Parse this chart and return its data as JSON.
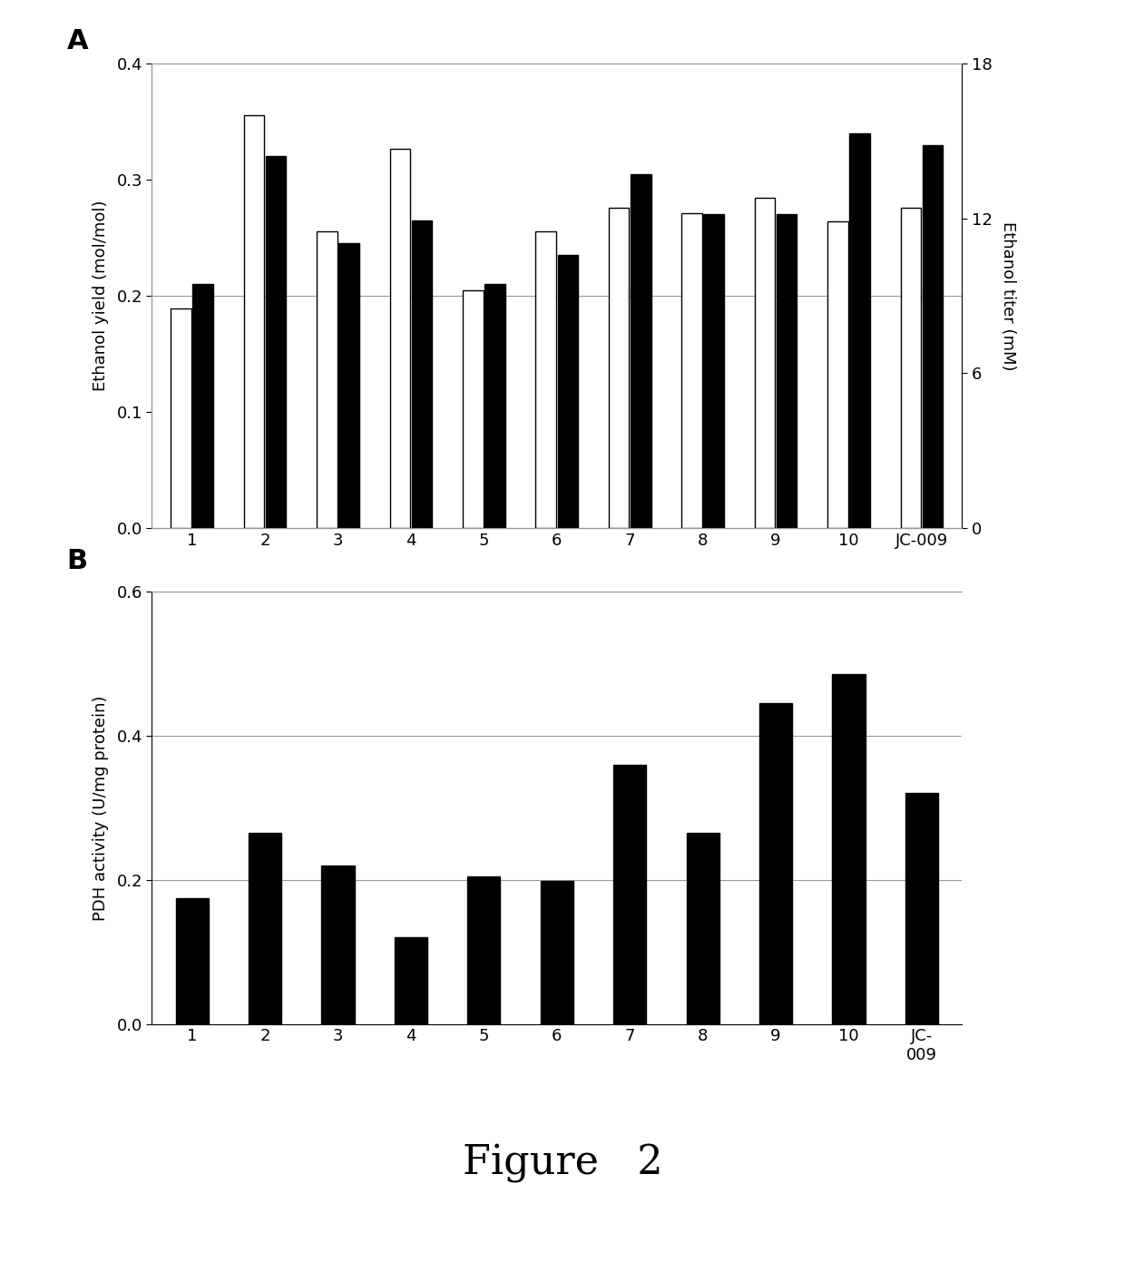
{
  "panel_a": {
    "categories": [
      "1",
      "2",
      "3",
      "4",
      "5",
      "6",
      "7",
      "8",
      "9",
      "10",
      "JC-009"
    ],
    "black_bars": [
      0.21,
      0.32,
      0.245,
      0.265,
      0.21,
      0.235,
      0.305,
      0.27,
      0.27,
      0.34,
      0.33
    ],
    "white_bars_mM": [
      8.5,
      16.0,
      11.5,
      14.7,
      9.2,
      11.5,
      12.4,
      12.2,
      12.8,
      11.9,
      12.4
    ],
    "ylabel_left": "Ethanol yield (mol/mol)",
    "ylabel_right": "Ethanol titer (mM)",
    "ylim_left": [
      0,
      0.4
    ],
    "ylim_right": [
      0,
      18
    ],
    "yticks_left": [
      0,
      0.1,
      0.2,
      0.3,
      0.4
    ],
    "yticks_right": [
      0,
      6,
      12,
      18
    ],
    "hline_y": 0.2,
    "panel_label": "A"
  },
  "panel_b": {
    "categories": [
      "1",
      "2",
      "3",
      "4",
      "5",
      "6",
      "7",
      "8",
      "9",
      "10",
      "JC-\n009"
    ],
    "values": [
      0.175,
      0.265,
      0.22,
      0.12,
      0.205,
      0.198,
      0.36,
      0.265,
      0.445,
      0.485,
      0.32
    ],
    "ylabel": "PDH activity (U/mg protein)",
    "ylim": [
      0,
      0.6
    ],
    "yticks": [
      0.0,
      0.2,
      0.4,
      0.6
    ],
    "hlines": [
      0.2,
      0.4,
      0.6
    ],
    "panel_label": "B"
  },
  "figure_label": "Figure   2",
  "bar_color_black": "#000000",
  "bar_color_white": "#ffffff",
  "bar_edgecolor": "#000000",
  "background_color": "#ffffff",
  "figure_label_fontsize": 32,
  "axis_linecolor": "#999999",
  "hline_color": "#999999"
}
